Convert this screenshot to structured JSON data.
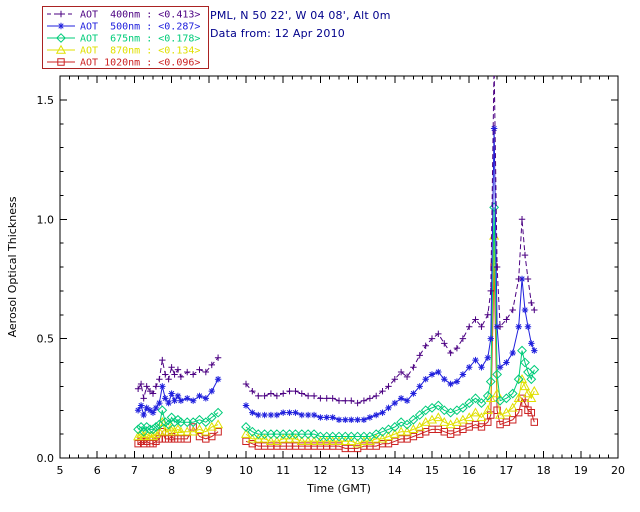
{
  "header": {
    "location_line": "PML, N 50 22', W 04 08', Alt 0m",
    "data_line": "Data from: 12 Apr 2010"
  },
  "colors": {
    "background": "#ffffff",
    "axis": "#000000",
    "tick_label": "#000000",
    "header_text": "#00008b",
    "legend_border": "#aa2222"
  },
  "chart_data": {
    "type": "line",
    "title": "",
    "xlabel": "Time (GMT)",
    "ylabel": "Aerosol Optical Thickness",
    "xlim": [
      5,
      20
    ],
    "ylim": [
      0,
      1.6
    ],
    "xticks": [
      5,
      6,
      7,
      8,
      9,
      10,
      11,
      12,
      13,
      14,
      15,
      16,
      17,
      18,
      19,
      20
    ],
    "yticks": [
      0.0,
      0.5,
      1.0,
      1.5
    ],
    "grid": false,
    "legend_position": "top-left",
    "x": [
      7.1,
      7.18,
      7.25,
      7.33,
      7.42,
      7.5,
      7.58,
      7.67,
      7.75,
      7.83,
      7.92,
      8.0,
      8.08,
      8.17,
      8.25,
      8.42,
      8.58,
      8.75,
      8.92,
      9.08,
      9.25,
      10.0,
      10.17,
      10.33,
      10.5,
      10.67,
      10.83,
      11.0,
      11.17,
      11.33,
      11.5,
      11.67,
      11.83,
      12.0,
      12.17,
      12.33,
      12.5,
      12.67,
      12.83,
      13.0,
      13.17,
      13.33,
      13.5,
      13.67,
      13.83,
      14.0,
      14.17,
      14.33,
      14.5,
      14.67,
      14.83,
      15.0,
      15.17,
      15.33,
      15.5,
      15.67,
      15.83,
      16.0,
      16.17,
      16.33,
      16.5,
      16.58,
      16.67,
      16.75,
      16.83,
      17.0,
      17.17,
      17.33,
      17.42,
      17.5,
      17.58,
      17.67,
      17.75
    ],
    "series": [
      {
        "name": "AOT  400nm",
        "legend_value": "<0.413>",
        "color": "#4b0082",
        "marker": "plus",
        "linestyle": "dashed",
        "values": [
          0.29,
          0.31,
          0.25,
          0.3,
          0.28,
          0.27,
          0.3,
          0.33,
          0.41,
          0.35,
          0.33,
          0.38,
          0.35,
          0.37,
          0.34,
          0.36,
          0.35,
          0.37,
          0.36,
          0.39,
          0.42,
          0.31,
          0.28,
          0.26,
          0.26,
          0.27,
          0.26,
          0.27,
          0.28,
          0.28,
          0.27,
          0.26,
          0.26,
          0.25,
          0.25,
          0.25,
          0.24,
          0.24,
          0.24,
          0.23,
          0.24,
          0.25,
          0.26,
          0.28,
          0.3,
          0.33,
          0.36,
          0.34,
          0.38,
          0.43,
          0.47,
          0.5,
          0.52,
          0.48,
          0.44,
          0.46,
          0.5,
          0.55,
          0.58,
          0.55,
          0.6,
          0.7,
          1.65,
          0.8,
          0.55,
          0.58,
          0.62,
          0.75,
          1.0,
          0.85,
          0.75,
          0.65,
          0.62
        ]
      },
      {
        "name": "AOT  500nm",
        "legend_value": "<0.287>",
        "color": "#2020dd",
        "marker": "asterisk",
        "linestyle": "solid",
        "values": [
          0.2,
          0.22,
          0.18,
          0.21,
          0.2,
          0.19,
          0.21,
          0.23,
          0.3,
          0.25,
          0.23,
          0.27,
          0.24,
          0.26,
          0.24,
          0.25,
          0.24,
          0.26,
          0.25,
          0.28,
          0.33,
          0.22,
          0.19,
          0.18,
          0.18,
          0.18,
          0.18,
          0.19,
          0.19,
          0.19,
          0.18,
          0.18,
          0.18,
          0.17,
          0.17,
          0.17,
          0.16,
          0.16,
          0.16,
          0.16,
          0.16,
          0.17,
          0.18,
          0.19,
          0.21,
          0.23,
          0.25,
          0.24,
          0.27,
          0.3,
          0.33,
          0.35,
          0.36,
          0.33,
          0.31,
          0.32,
          0.35,
          0.38,
          0.41,
          0.38,
          0.42,
          0.5,
          1.38,
          0.55,
          0.38,
          0.4,
          0.44,
          0.55,
          0.75,
          0.62,
          0.55,
          0.48,
          0.45
        ]
      },
      {
        "name": "AOT  675nm",
        "legend_value": "<0.178>",
        "color": "#00cc7a",
        "marker": "diamond",
        "linestyle": "solid",
        "values": [
          0.12,
          0.13,
          0.11,
          0.13,
          0.12,
          0.12,
          0.13,
          0.14,
          0.2,
          0.15,
          0.14,
          0.17,
          0.15,
          0.16,
          0.15,
          0.15,
          0.15,
          0.16,
          0.15,
          0.17,
          0.19,
          0.13,
          0.11,
          0.1,
          0.1,
          0.1,
          0.1,
          0.1,
          0.1,
          0.1,
          0.1,
          0.1,
          0.1,
          0.09,
          0.09,
          0.09,
          0.09,
          0.09,
          0.09,
          0.09,
          0.09,
          0.09,
          0.1,
          0.11,
          0.12,
          0.13,
          0.15,
          0.14,
          0.16,
          0.18,
          0.2,
          0.21,
          0.22,
          0.2,
          0.19,
          0.2,
          0.21,
          0.23,
          0.25,
          0.23,
          0.26,
          0.32,
          1.05,
          0.35,
          0.24,
          0.25,
          0.27,
          0.33,
          0.45,
          0.4,
          0.36,
          0.33,
          0.37
        ]
      },
      {
        "name": "AOT  870nm",
        "legend_value": "<0.134>",
        "color": "#e0e000",
        "marker": "triangle",
        "linestyle": "solid",
        "values": [
          0.09,
          0.1,
          0.09,
          0.1,
          0.09,
          0.09,
          0.1,
          0.11,
          0.15,
          0.11,
          0.11,
          0.13,
          0.11,
          0.12,
          0.11,
          0.11,
          0.11,
          0.12,
          0.11,
          0.13,
          0.14,
          0.1,
          0.08,
          0.08,
          0.08,
          0.07,
          0.07,
          0.08,
          0.08,
          0.08,
          0.07,
          0.07,
          0.07,
          0.07,
          0.07,
          0.07,
          0.07,
          0.07,
          0.07,
          0.06,
          0.07,
          0.07,
          0.08,
          0.08,
          0.09,
          0.1,
          0.11,
          0.11,
          0.12,
          0.13,
          0.15,
          0.16,
          0.17,
          0.15,
          0.14,
          0.15,
          0.16,
          0.17,
          0.19,
          0.17,
          0.2,
          0.25,
          0.93,
          0.27,
          0.18,
          0.19,
          0.21,
          0.25,
          0.33,
          0.3,
          0.27,
          0.25,
          0.28
        ]
      },
      {
        "name": "AOT 1020nm",
        "legend_value": "<0.096>",
        "color": "#cc2222",
        "marker": "square",
        "linestyle": "solid",
        "values": [
          0.06,
          0.07,
          0.06,
          0.07,
          0.06,
          0.06,
          0.07,
          0.08,
          0.11,
          0.08,
          0.08,
          0.09,
          0.08,
          0.08,
          0.08,
          0.08,
          0.13,
          0.09,
          0.08,
          0.09,
          0.11,
          0.07,
          0.06,
          0.05,
          0.05,
          0.05,
          0.05,
          0.05,
          0.05,
          0.05,
          0.05,
          0.05,
          0.05,
          0.05,
          0.05,
          0.05,
          0.05,
          0.04,
          0.04,
          0.04,
          0.05,
          0.05,
          0.05,
          0.06,
          0.06,
          0.07,
          0.08,
          0.08,
          0.09,
          0.1,
          0.11,
          0.12,
          0.12,
          0.11,
          0.1,
          0.11,
          0.12,
          0.13,
          0.14,
          0.13,
          0.15,
          0.18,
          0.8,
          0.2,
          0.14,
          0.15,
          0.16,
          0.19,
          0.25,
          0.23,
          0.2,
          0.19,
          0.15
        ]
      }
    ]
  }
}
